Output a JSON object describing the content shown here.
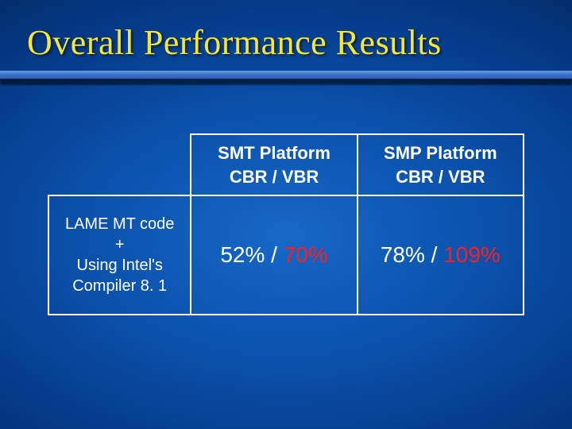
{
  "slide": {
    "title": "Overall Performance Results",
    "background_gradient": [
      "#1668c8",
      "#0a4fa8",
      "#053a88",
      "#022860",
      "#011a42"
    ],
    "title_color": "#f7e733",
    "underline_color": "#3a6fc8",
    "table": {
      "border_color": "#ffffff",
      "header_fontsize": 22,
      "rowlabel_fontsize": 20,
      "value_fontsize": 28,
      "cbr_color": "#ffffff",
      "vbr_color": "#ff1e1e",
      "columns": [
        {
          "line1": "SMT Platform",
          "line2": "CBR / VBR"
        },
        {
          "line1": "SMP Platform",
          "line2": "CBR / VBR"
        }
      ],
      "rows": [
        {
          "label_lines": [
            "LAME MT code",
            "+",
            "Using Intel's",
            "Compiler 8. 1"
          ],
          "values": [
            {
              "cbr": "52%",
              "sep": "/",
              "vbr": "70%"
            },
            {
              "cbr": "78%",
              "sep": "/",
              "vbr": "109%"
            }
          ]
        }
      ]
    }
  }
}
